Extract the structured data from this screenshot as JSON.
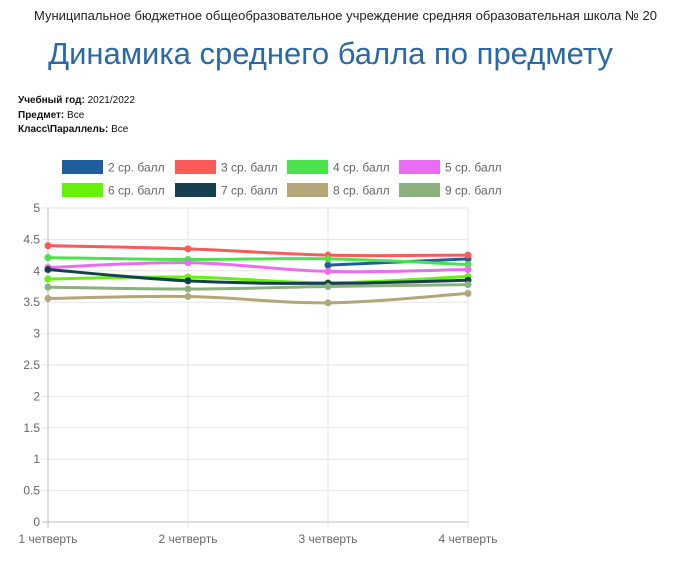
{
  "header": {
    "school": "Муниципальное бюджетное общеобразовательное учреждение средняя образовательная школа № 20",
    "title": "Динамика среднего балла по предмету"
  },
  "meta": [
    {
      "label": "Учебный год:",
      "value": "2021/2022"
    },
    {
      "label": "Предмет:",
      "value": "Все"
    },
    {
      "label": "Класс\\Параллель:",
      "value": "Все"
    }
  ],
  "chart_data": {
    "type": "line",
    "categories": [
      "1 четверть",
      "2 четверть",
      "3 четверть",
      "4 четверть"
    ],
    "ylim": [
      0,
      5
    ],
    "yticks": [
      "0",
      "0.5",
      "1",
      "1.5",
      "2",
      "2.5",
      "3",
      "3.5",
      "4",
      "4.5",
      "5"
    ],
    "grid": true,
    "legend_position": "top",
    "series": [
      {
        "name": "2 ср. балл",
        "color": "#1e5e9f",
        "values": [
          null,
          null,
          4.09,
          4.19
        ]
      },
      {
        "name": "3 ср. балл",
        "color": "#fb5a5a",
        "values": [
          4.4,
          4.35,
          4.25,
          4.25
        ]
      },
      {
        "name": "4 ср. балл",
        "color": "#4ce24c",
        "values": [
          4.21,
          4.18,
          4.19,
          4.1
        ]
      },
      {
        "name": "5 ср. балл",
        "color": "#ea6cf2",
        "values": [
          4.05,
          4.13,
          3.99,
          4.02
        ]
      },
      {
        "name": "6 ср. балл",
        "color": "#66f20a",
        "values": [
          3.87,
          3.9,
          3.81,
          3.91
        ]
      },
      {
        "name": "7 ср. балл",
        "color": "#16404f",
        "values": [
          4.02,
          3.84,
          3.8,
          3.85
        ]
      },
      {
        "name": "8 ср. балл",
        "color": "#b3a678",
        "values": [
          3.56,
          3.59,
          3.49,
          3.64
        ]
      },
      {
        "name": "9 ср. балл",
        "color": "#8cb07e",
        "values": [
          3.74,
          3.71,
          3.75,
          3.78
        ]
      }
    ]
  }
}
